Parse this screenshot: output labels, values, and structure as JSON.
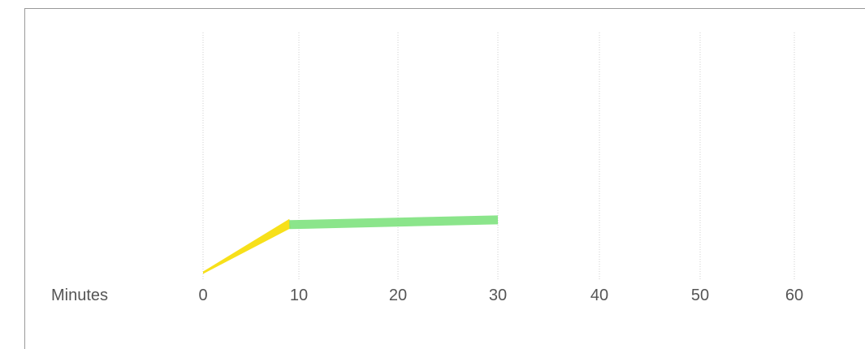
{
  "chart_data": {
    "type": "line",
    "xlabel": "Minutes",
    "x_ticks": [
      "0",
      "10",
      "20",
      "30",
      "40",
      "50",
      "60"
    ],
    "xlim": [
      0,
      60
    ],
    "grid": true,
    "series": [
      {
        "color": "#f7e01a",
        "points": [
          [
            0,
            0
          ],
          [
            9,
            0.2
          ]
        ]
      },
      {
        "color": "#7ee27e",
        "points": [
          [
            9,
            0.2
          ],
          [
            30,
            0.22
          ]
        ]
      }
    ],
    "ylim": [
      0,
      1
    ]
  }
}
